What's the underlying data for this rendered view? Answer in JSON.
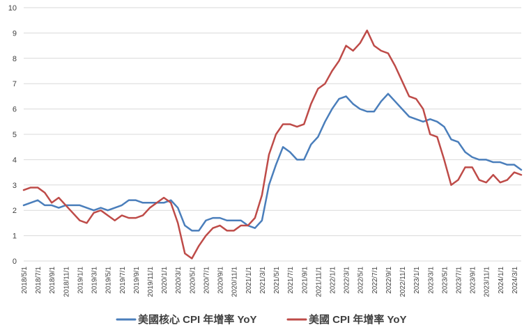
{
  "chart_data": {
    "type": "line",
    "title": "",
    "xlabel": "",
    "ylabel": "",
    "ylim": [
      0,
      10
    ],
    "yticks": [
      "0",
      "1",
      "2",
      "3",
      "4",
      "5",
      "6",
      "7",
      "8",
      "9",
      "10"
    ],
    "grid": true,
    "legend_position": "bottom",
    "xtick_labels": [
      "2018/5/1",
      "2018/7/1",
      "2018/9/1",
      "2018/11/1",
      "2019/1/1",
      "2019/3/1",
      "2019/5/1",
      "2019/7/1",
      "2019/9/1",
      "2019/11/1",
      "2020/1/1",
      "2020/3/1",
      "2020/5/1",
      "2020/7/1",
      "2020/9/1",
      "2020/11/1",
      "2021/1/1",
      "2021/3/1",
      "2021/5/1",
      "2021/7/1",
      "2021/9/1",
      "2021/11/1",
      "2022/1/1",
      "2022/3/1",
      "2022/5/1",
      "2022/7/1",
      "2022/9/1",
      "2022/11/1",
      "2023/1/1",
      "2023/3/1",
      "2023/5/1",
      "2023/7/1",
      "2023/9/1",
      "2023/11/1",
      "2024/1/1",
      "2024/3/1"
    ],
    "series": [
      {
        "name": "美國核心 CPI 年增率 YoY",
        "color": "#4a7ebb",
        "values": [
          2.2,
          2.3,
          2.4,
          2.2,
          2.2,
          2.1,
          2.2,
          2.2,
          2.2,
          2.1,
          2.0,
          2.1,
          2.0,
          2.1,
          2.2,
          2.4,
          2.4,
          2.3,
          2.3,
          2.3,
          2.3,
          2.4,
          2.1,
          1.4,
          1.2,
          1.2,
          1.6,
          1.7,
          1.7,
          1.6,
          1.6,
          1.6,
          1.4,
          1.3,
          1.6,
          3.0,
          3.8,
          4.5,
          4.3,
          4.0,
          4.0,
          4.6,
          4.9,
          5.5,
          6.0,
          6.4,
          6.5,
          6.2,
          6.0,
          5.9,
          5.9,
          6.3,
          6.6,
          6.3,
          6.0,
          5.7,
          5.6,
          5.5,
          5.6,
          5.5,
          5.3,
          4.8,
          4.7,
          4.3,
          4.1,
          4.0,
          4.0,
          3.9,
          3.9,
          3.8,
          3.8,
          3.6
        ]
      },
      {
        "name": "美國 CPI 年增率 YoY",
        "color": "#be4b48",
        "values": [
          2.8,
          2.9,
          2.9,
          2.7,
          2.3,
          2.5,
          2.2,
          1.9,
          1.6,
          1.5,
          1.9,
          2.0,
          1.8,
          1.6,
          1.8,
          1.7,
          1.7,
          1.8,
          2.1,
          2.3,
          2.5,
          2.3,
          1.5,
          0.3,
          0.1,
          0.6,
          1.0,
          1.3,
          1.4,
          1.2,
          1.2,
          1.4,
          1.4,
          1.7,
          2.6,
          4.2,
          5.0,
          5.4,
          5.4,
          5.3,
          5.4,
          6.2,
          6.8,
          7.0,
          7.5,
          7.9,
          8.5,
          8.3,
          8.6,
          9.1,
          8.5,
          8.3,
          8.2,
          7.7,
          7.1,
          6.5,
          6.4,
          6.0,
          5.0,
          4.9,
          4.0,
          3.0,
          3.2,
          3.7,
          3.7,
          3.2,
          3.1,
          3.4,
          3.1,
          3.2,
          3.5,
          3.4
        ]
      }
    ]
  }
}
